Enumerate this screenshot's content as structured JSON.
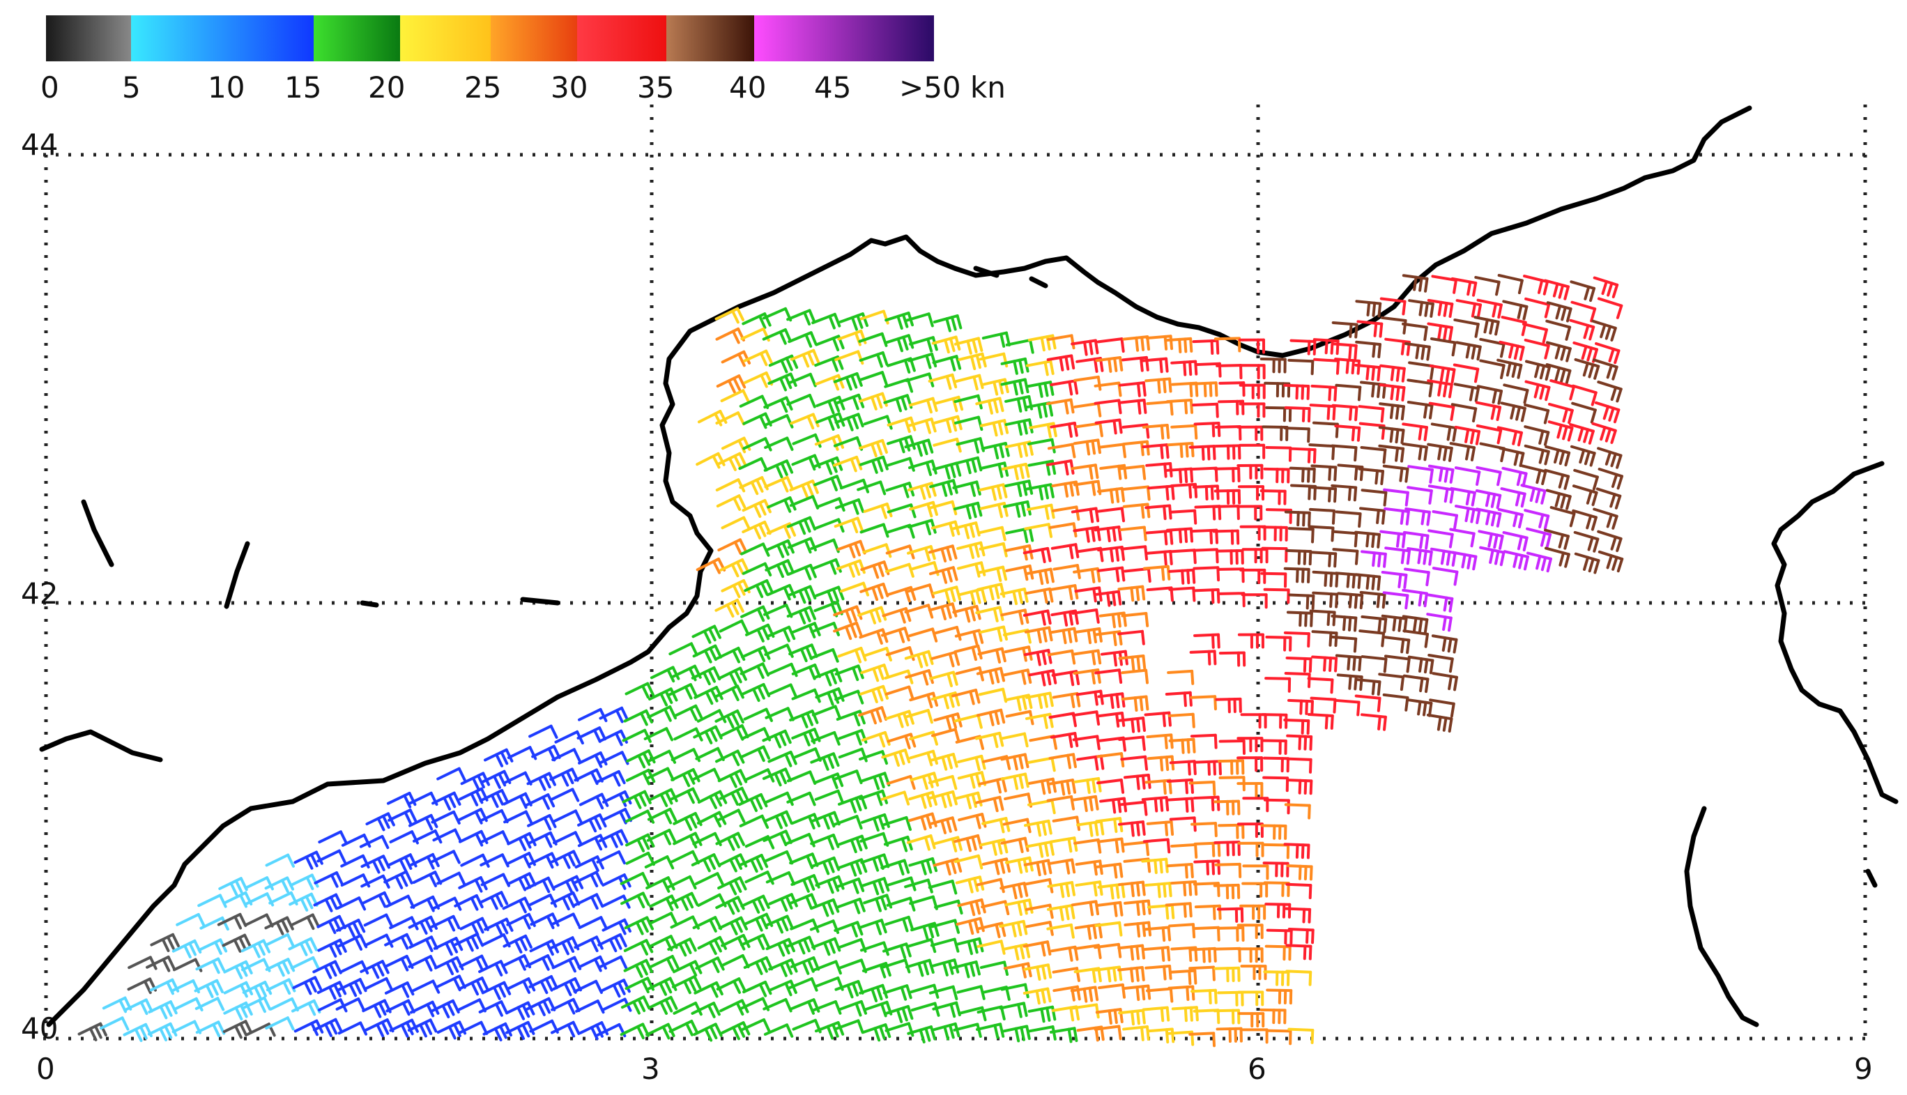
{
  "colorbar": {
    "bins": [
      {
        "range": "0-5",
        "from": "#1a1a1a",
        "to": "#888888"
      },
      {
        "range": "5-15",
        "from": "#39e8ff",
        "to": "#1038ff"
      },
      {
        "range": "15-20",
        "from": "#3ddf2e",
        "to": "#0a7a12"
      },
      {
        "range": "20-25",
        "from": "#fff23a",
        "to": "#ffc21a"
      },
      {
        "range": "25-30",
        "from": "#ffa528",
        "to": "#e8400f"
      },
      {
        "range": "30-35",
        "from": "#ff3a45",
        "to": "#ee1010"
      },
      {
        "range": "35-40",
        "from": "#b87a52",
        "to": "#3d1408"
      },
      {
        "range": "40-50",
        "from": "#ff4dff",
        "to": "#2a0a66"
      }
    ],
    "tick_labels": [
      "0",
      "5",
      "10",
      "15",
      "20",
      "25",
      "30",
      "35",
      "40",
      "45",
      ">50 kn"
    ]
  },
  "axes": {
    "lon_labels": [
      "0",
      "3",
      "6",
      "9"
    ],
    "lat_labels": [
      "44",
      "42",
      "40"
    ]
  },
  "wind_speed_colors": {
    "calm": "#555555",
    "light": "#5ad7ff",
    "moderate": "#1e3cff",
    "fresh": "#1fc41f",
    "strong": "#ffd21e",
    "near_gale": "#ff8a1e",
    "gale": "#ff1f2d",
    "strong_gale": "#7a3a22",
    "storm": "#c828ff"
  }
}
